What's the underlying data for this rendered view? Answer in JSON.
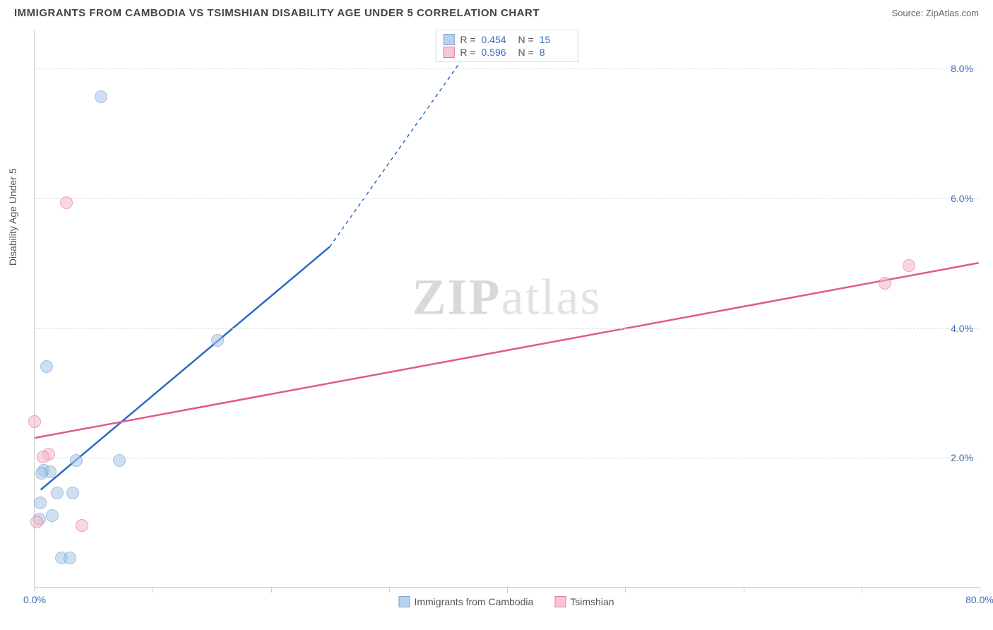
{
  "header": {
    "title": "IMMIGRANTS FROM CAMBODIA VS TSIMSHIAN DISABILITY AGE UNDER 5 CORRELATION CHART",
    "source": "Source: ZipAtlas.com"
  },
  "watermark": {
    "prefix": "ZIP",
    "suffix": "atlas"
  },
  "chart": {
    "type": "scatter",
    "y_axis_label": "Disability Age Under 5",
    "background_color": "#ffffff",
    "grid_color": "#dddddd",
    "axis_line_color": "#cccccc",
    "tick_label_color": "#3b6db5",
    "xlim": [
      0,
      80
    ],
    "ylim": [
      0,
      8.6
    ],
    "x_ticks": [
      {
        "pos": 0,
        "label": "0.0%"
      },
      {
        "pos": 10,
        "label": ""
      },
      {
        "pos": 20,
        "label": ""
      },
      {
        "pos": 30,
        "label": ""
      },
      {
        "pos": 40,
        "label": ""
      },
      {
        "pos": 50,
        "label": ""
      },
      {
        "pos": 60,
        "label": ""
      },
      {
        "pos": 70,
        "label": ""
      },
      {
        "pos": 80,
        "label": "80.0%"
      }
    ],
    "y_ticks": [
      {
        "pos": 2.0,
        "label": "2.0%"
      },
      {
        "pos": 4.0,
        "label": "4.0%"
      },
      {
        "pos": 6.0,
        "label": "6.0%"
      },
      {
        "pos": 8.0,
        "label": "8.0%"
      }
    ],
    "series": [
      {
        "name": "Immigrants from Cambodia",
        "fill_color": "#a8c6e8",
        "stroke_color": "#5a8fc9",
        "fill_opacity": 0.55,
        "line_color": "#2b68c5",
        "marker_radius": 9,
        "r_value": "0.454",
        "n_value": "15",
        "trend": {
          "x1": 0.5,
          "y1": 1.5,
          "x2": 25,
          "y2": 5.25,
          "dash_from_x": 25,
          "dash_to_x": 38,
          "dash_to_y": 8.6
        },
        "points": [
          {
            "x": 5.6,
            "y": 7.55
          },
          {
            "x": 1.0,
            "y": 3.4
          },
          {
            "x": 15.5,
            "y": 3.8
          },
          {
            "x": 3.5,
            "y": 1.95
          },
          {
            "x": 7.2,
            "y": 1.95
          },
          {
            "x": 0.8,
            "y": 1.8
          },
          {
            "x": 1.3,
            "y": 1.78
          },
          {
            "x": 0.6,
            "y": 1.75
          },
          {
            "x": 1.9,
            "y": 1.45
          },
          {
            "x": 3.2,
            "y": 1.45
          },
          {
            "x": 0.5,
            "y": 1.3
          },
          {
            "x": 1.5,
            "y": 1.1
          },
          {
            "x": 0.4,
            "y": 1.05
          },
          {
            "x": 2.3,
            "y": 0.45
          },
          {
            "x": 3.0,
            "y": 0.45
          }
        ]
      },
      {
        "name": "Tsimshian",
        "fill_color": "#f5b8c8",
        "stroke_color": "#e05a85",
        "fill_opacity": 0.55,
        "line_color": "#e05a85",
        "marker_radius": 9,
        "r_value": "0.596",
        "n_value": "8",
        "trend": {
          "x1": 0,
          "y1": 2.3,
          "x2": 80,
          "y2": 5.0
        },
        "points": [
          {
            "x": 2.7,
            "y": 5.92
          },
          {
            "x": 74.0,
            "y": 4.95
          },
          {
            "x": 72.0,
            "y": 4.68
          },
          {
            "x": 0.0,
            "y": 2.55
          },
          {
            "x": 1.2,
            "y": 2.05
          },
          {
            "x": 0.7,
            "y": 2.0
          },
          {
            "x": 0.2,
            "y": 1.0
          },
          {
            "x": 4.0,
            "y": 0.95
          }
        ]
      }
    ],
    "stats_box_labels": {
      "r": "R =",
      "n": "N ="
    },
    "legend_position": "bottom-center"
  }
}
